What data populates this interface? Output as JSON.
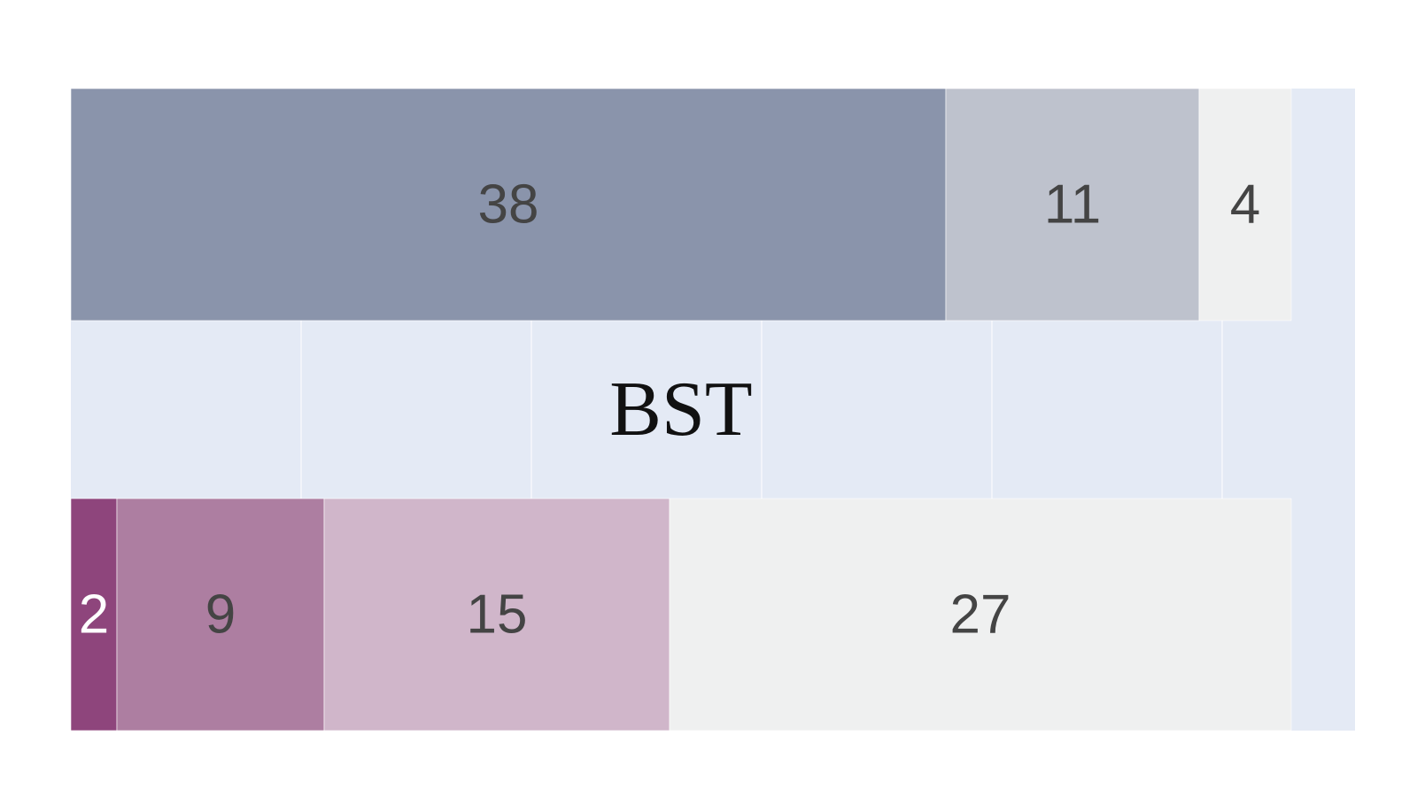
{
  "chart_data": {
    "type": "bar",
    "orientation": "horizontal",
    "stacked": true,
    "title": "BST",
    "xlim": [
      0,
      56
    ],
    "grid": true,
    "bars": [
      {
        "segments": [
          {
            "value": 38,
            "label": "38",
            "color": "#8a94ab"
          },
          {
            "value": 11,
            "label": "11",
            "color": "#bec2cd"
          },
          {
            "value": 4,
            "label": "4",
            "color": "#eff0f0"
          }
        ]
      },
      {
        "segments": [
          {
            "value": 2,
            "label": "2",
            "color": "#8e457c",
            "label_color": "#ffffff"
          },
          {
            "value": 9,
            "label": "9",
            "color": "#ad7ea1"
          },
          {
            "value": 15,
            "label": "15",
            "color": "#d0b6ca"
          },
          {
            "value": 27,
            "label": "27",
            "color": "#eff0f0"
          }
        ]
      }
    ],
    "colors": {
      "plot_background": "#e4eaf5",
      "gridline": "#ffffff",
      "label_text": "#444444",
      "title_text": "#111111"
    }
  }
}
